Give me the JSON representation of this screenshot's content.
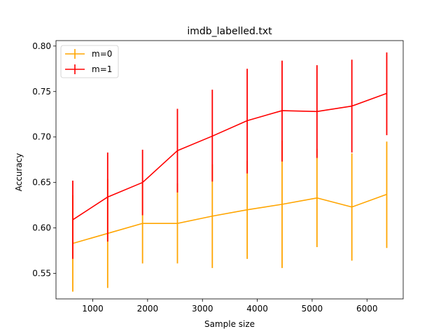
{
  "chart_data": {
    "type": "line",
    "title": "imdb_labelled.txt",
    "xlabel": "Sample size",
    "ylabel": "Accuracy",
    "xlim": [
      330,
      6660
    ],
    "ylim": [
      0.522,
      0.806
    ],
    "xticks": [
      1000,
      2000,
      3000,
      4000,
      5000,
      6000
    ],
    "yticks": [
      0.55,
      0.6,
      0.65,
      0.7,
      0.75,
      0.8
    ],
    "xtick_labels": [
      "1000",
      "2000",
      "3000",
      "4000",
      "5000",
      "6000"
    ],
    "ytick_labels": [
      "0.55",
      "0.60",
      "0.65",
      "0.70",
      "0.75",
      "0.80"
    ],
    "grid": false,
    "legend_position": "upper-left",
    "x": [
      636,
      1272,
      1908,
      2544,
      3180,
      3816,
      4452,
      5088,
      5724,
      6360
    ],
    "series": [
      {
        "name": "m=0",
        "color": "#ffa500",
        "values": [
          0.583,
          0.594,
          0.605,
          0.605,
          0.613,
          0.62,
          0.626,
          0.633,
          0.623,
          0.637
        ],
        "err_low": [
          0.53,
          0.534,
          0.561,
          0.561,
          0.556,
          0.566,
          0.556,
          0.579,
          0.564,
          0.578
        ],
        "err_high": [
          0.636,
          0.654,
          0.649,
          0.649,
          0.67,
          0.674,
          0.696,
          0.687,
          0.682,
          0.695
        ]
      },
      {
        "name": "m=1",
        "color": "#ff0000",
        "values": [
          0.609,
          0.634,
          0.65,
          0.685,
          0.701,
          0.718,
          0.729,
          0.728,
          0.734,
          0.748
        ],
        "err_low": [
          0.566,
          0.585,
          0.614,
          0.639,
          0.651,
          0.66,
          0.673,
          0.677,
          0.683,
          0.702
        ],
        "err_high": [
          0.652,
          0.683,
          0.686,
          0.731,
          0.752,
          0.775,
          0.784,
          0.779,
          0.785,
          0.793
        ]
      }
    ]
  }
}
